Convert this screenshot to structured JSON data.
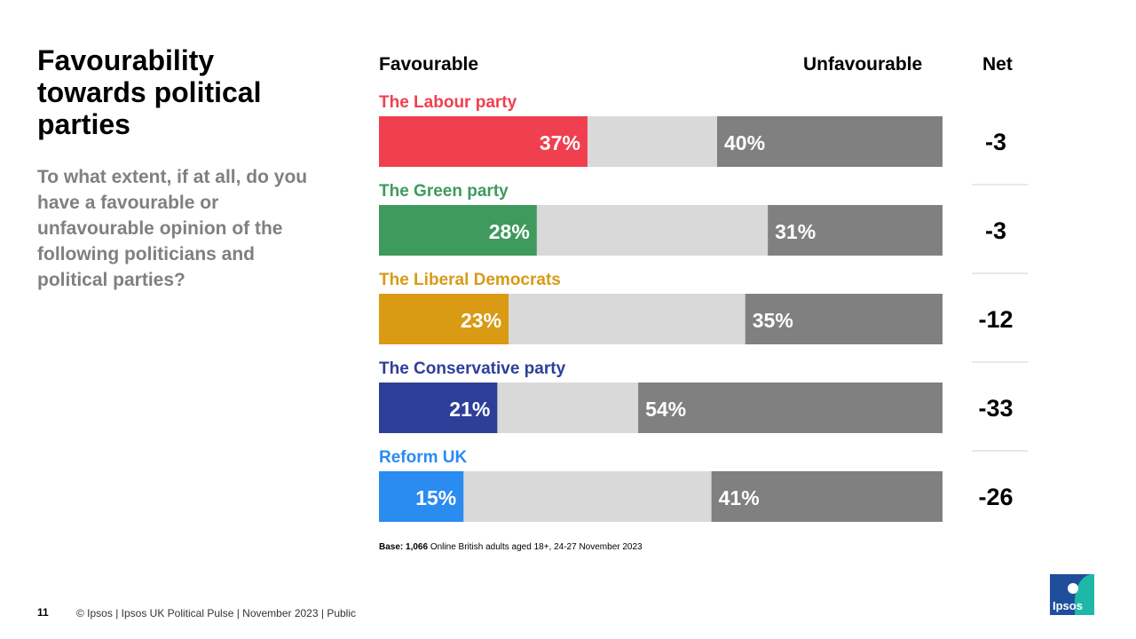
{
  "page": {
    "title": "Favourability towards political parties",
    "subtitle": "To what extent, if at all, do you have a favourable or unfavourable opinion of the following politicians and political parties?",
    "header_favourable": "Favourable",
    "header_unfavourable": "Unfavourable",
    "header_net": "Net",
    "base_label": "Base:",
    "base_count": "1,066",
    "base_text": "Online British adults aged 18+, 24-27 November 2023",
    "page_number": "11",
    "footer": "© Ipsos | Ipsos UK Political Pulse | November 2023 | Public",
    "logo_text": "Ipsos"
  },
  "colors": {
    "neutral": "#d9d9d9",
    "unfavourable": "#808080",
    "divider": "#d0d0d0"
  },
  "chart_data": {
    "type": "bar",
    "orientation": "horizontal-stacked",
    "title": "Favourability towards political parties",
    "xlim": [
      0,
      100
    ],
    "categories": [
      "The Labour party",
      "The Green party",
      "The Liberal Democrats",
      "The Conservative party",
      "Reform UK"
    ],
    "series": [
      {
        "name": "Favourable",
        "values": [
          37,
          28,
          23,
          21,
          15
        ],
        "labels": [
          "37%",
          "28%",
          "23%",
          "21%",
          "15%"
        ]
      },
      {
        "name": "Unfavourable",
        "values": [
          40,
          31,
          35,
          54,
          41
        ],
        "labels": [
          "40%",
          "31%",
          "35%",
          "54%",
          "41%"
        ]
      }
    ],
    "net": [
      "-3",
      "-3",
      "-12",
      "-33",
      "-26"
    ],
    "category_colors": [
      "#f0404f",
      "#3f9a5e",
      "#d99a14",
      "#2e3f99",
      "#2a8bf0"
    ]
  }
}
